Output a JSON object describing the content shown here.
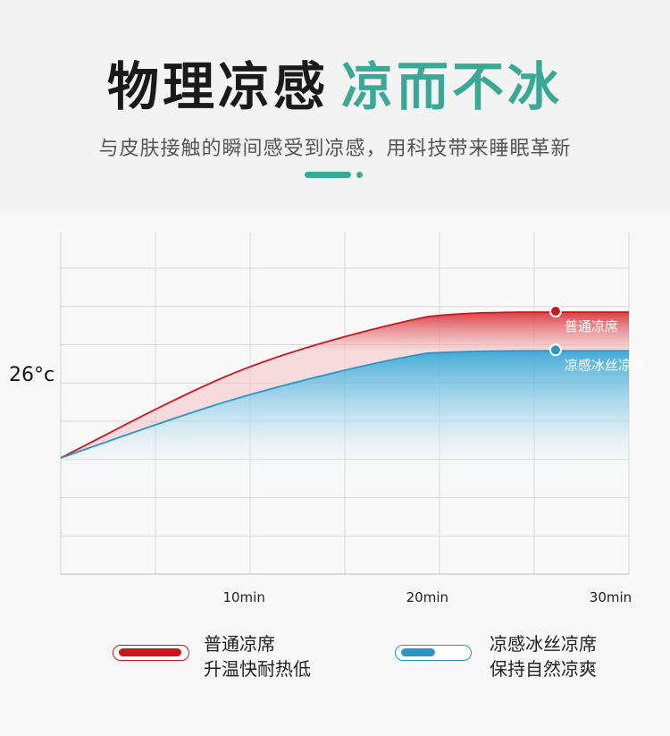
{
  "header": {
    "title_part1": "物理凉感",
    "title_part2": "凉而不冰",
    "subtitle": "与皮肤接触的瞬间感受到凉感，用科技带来睡眠革新"
  },
  "colors": {
    "accent_green": "#3aa896",
    "red": "#c8181e",
    "blue": "#2a96c4"
  },
  "chart_data": {
    "type": "area",
    "title": "",
    "xlabel": "",
    "ylabel": "",
    "x_ticks": [
      "10min",
      "20min",
      "30min"
    ],
    "y_ticks": [
      "26°c"
    ],
    "grid": true,
    "series": [
      {
        "name": "普通凉席",
        "color": "#c8181e",
        "points": [
          [
            0,
            0
          ],
          [
            10,
            39
          ],
          [
            20,
            62
          ],
          [
            25,
            64
          ],
          [
            30,
            64
          ],
          [
            31,
            64
          ]
        ],
        "marker_at": 27
      },
      {
        "name": "凉感冰丝凉席",
        "color": "#2a96c4",
        "points": [
          [
            0,
            0
          ],
          [
            10,
            27
          ],
          [
            20,
            46
          ],
          [
            25,
            47
          ],
          [
            30,
            47
          ],
          [
            31,
            47
          ]
        ],
        "marker_at": 27
      }
    ]
  },
  "legend": [
    {
      "title": "普通凉席",
      "desc": "升温快耐热低",
      "color": "#c8181e"
    },
    {
      "title": "凉感冰丝凉席",
      "desc": "保持自然凉爽",
      "color": "#2a96c4"
    }
  ]
}
